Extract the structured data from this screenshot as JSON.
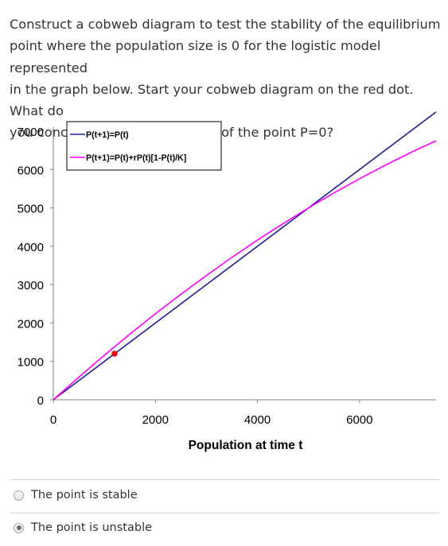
{
  "question": {
    "lines": [
      "Construct a cobweb diagram to test the stability of the equilibrium",
      "point where the population size is 0 for the logistic model represented",
      "in the graph below. Start your cobweb diagram on the red dot. What do",
      "you conclude about the stability of the point P=0?"
    ]
  },
  "chart_data": {
    "type": "line",
    "xlabel": "Population at time t",
    "ylabel": "",
    "xlim": [
      0,
      7500
    ],
    "ylim": [
      0,
      7000
    ],
    "x_ticks": [
      0,
      2000,
      4000,
      6000
    ],
    "y_ticks": [
      0,
      1000,
      2000,
      3000,
      4000,
      5000,
      6000,
      7000
    ],
    "legend_position": "top-left",
    "grid": false,
    "series": [
      {
        "name": "P(t+1)=P(t)",
        "color": "#1e1e8c",
        "x": [
          0,
          7500
        ],
        "y": [
          0,
          7500
        ]
      },
      {
        "name": "P(t+1)=P(t)+rP(t)[1-P(t)/K]",
        "color": "#ff00ff",
        "x": [
          0,
          500,
          1000,
          1500,
          2000,
          2500,
          3000,
          3500,
          4000,
          4500,
          5000,
          5500,
          6000,
          6500,
          7000,
          7500
        ],
        "y": [
          0,
          590,
          1160,
          1710,
          2240,
          2750,
          3240,
          3710,
          4160,
          4590,
          5000,
          5390,
          5760,
          6110,
          6440,
          6750
        ]
      }
    ],
    "marker": {
      "x": 1200,
      "y": 1200,
      "color": "#e01010"
    }
  },
  "options": [
    {
      "label": "The point is stable",
      "checked": false
    },
    {
      "label": "The point is unstable",
      "checked": true
    }
  ]
}
